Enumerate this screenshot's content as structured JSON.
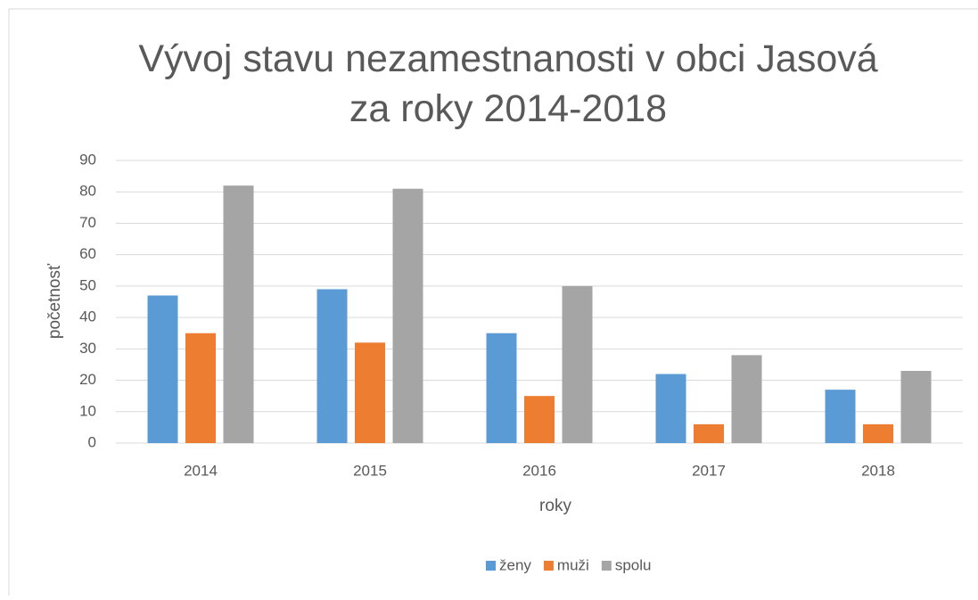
{
  "chart_data": {
    "type": "bar",
    "title": "Vývoj stavu nezamestnanosti v obci Jasová za roky 2014-2018",
    "x_label": "roky",
    "y_label": "početnosť",
    "categories": [
      "2014",
      "2015",
      "2016",
      "2017",
      "2018"
    ],
    "series": [
      {
        "name": "ženy",
        "color": "#5b9bd5",
        "values": [
          47,
          49,
          35,
          22,
          17
        ]
      },
      {
        "name": "muži",
        "color": "#ed7d31",
        "values": [
          35,
          32,
          15,
          6,
          6
        ]
      },
      {
        "name": "spolu",
        "color": "#a5a5a5",
        "values": [
          82,
          81,
          50,
          28,
          23
        ]
      }
    ],
    "ylim": [
      0,
      90
    ],
    "yticks": [
      0,
      10,
      20,
      30,
      40,
      50,
      60,
      70,
      80,
      90
    ],
    "grid": true,
    "legend": "bottom"
  }
}
